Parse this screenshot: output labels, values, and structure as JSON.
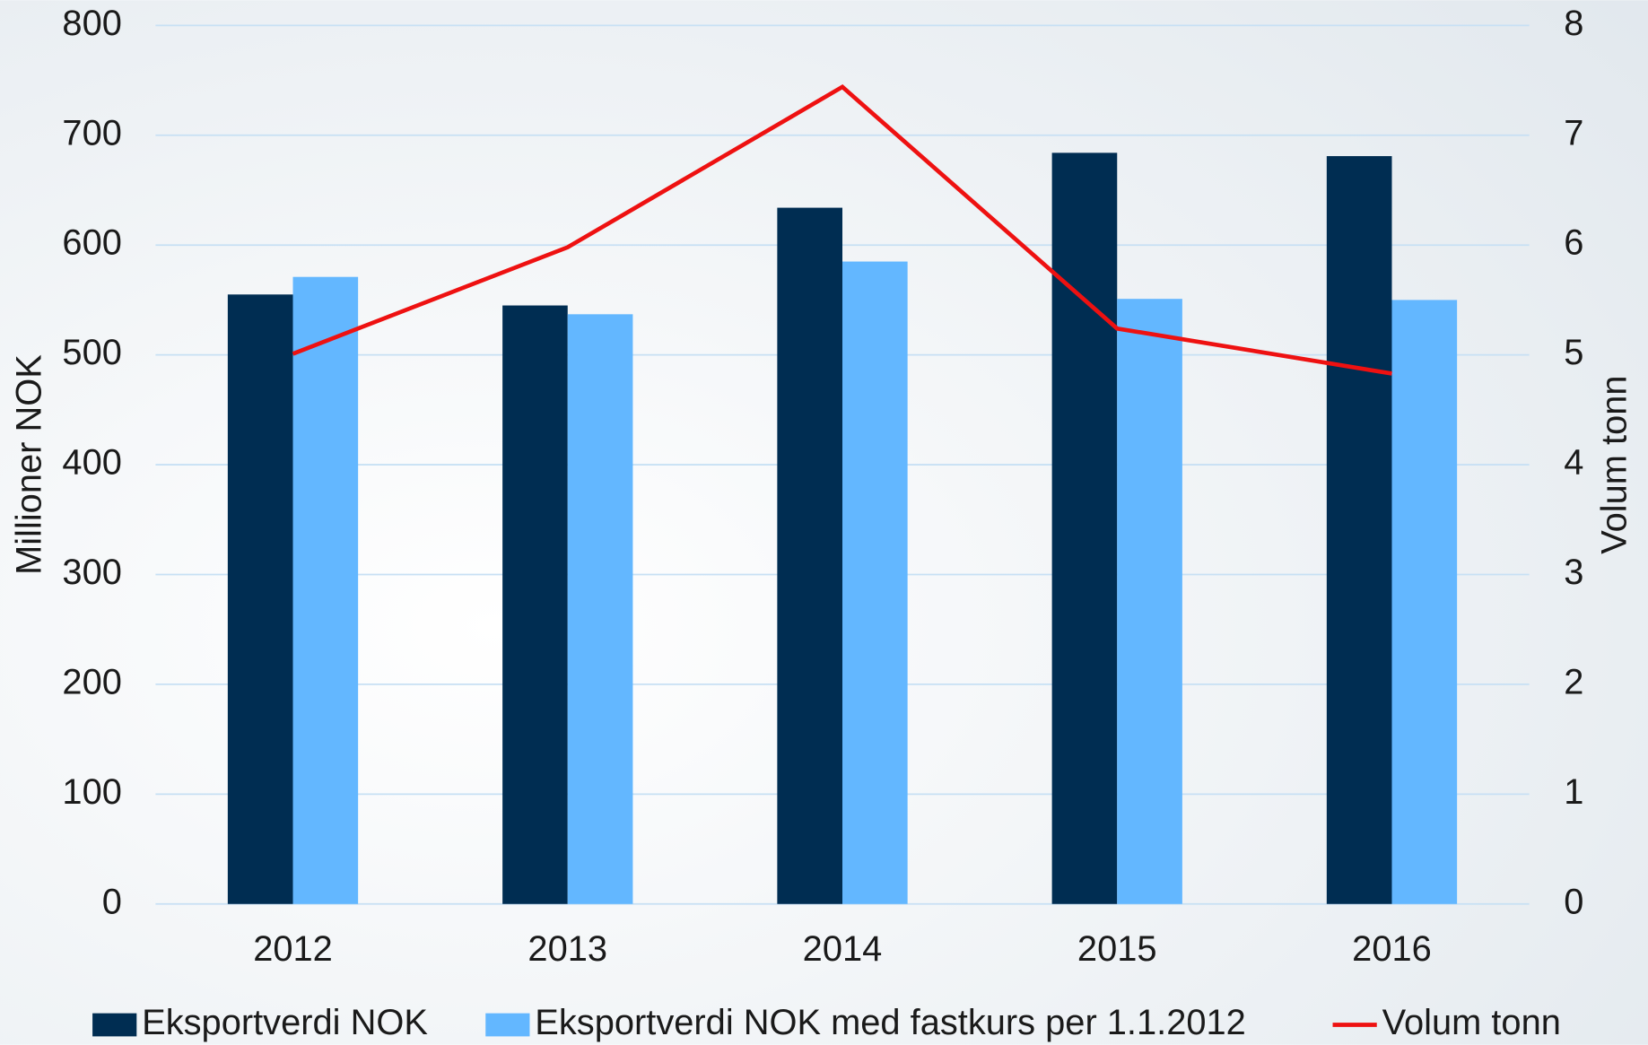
{
  "chart_data": {
    "type": "bar",
    "categories": [
      "2012",
      "2013",
      "2014",
      "2015",
      "2016"
    ],
    "series": [
      {
        "name": "Eksportverdi NOK",
        "color": "#002d52",
        "values": [
          555,
          545,
          634,
          684,
          681
        ]
      },
      {
        "name": "Eksportverdi NOK med fastkurs per 1.1.2012",
        "color": "#63b7ff",
        "values": [
          571,
          537,
          585,
          551,
          550
        ]
      },
      {
        "name": "Volum tonn",
        "type": "line",
        "axis": "y2",
        "color": "#ee1111",
        "values": [
          5.01,
          5.98,
          7.44,
          5.24,
          4.83
        ]
      }
    ],
    "ylabel": "Millioner NOK",
    "y2label": "Volum tonn",
    "ylim": [
      0,
      800
    ],
    "yticks": [
      0,
      100,
      200,
      300,
      400,
      500,
      600,
      700,
      800
    ],
    "y2lim": [
      0,
      8
    ],
    "y2ticks": [
      0,
      1,
      2,
      3,
      4,
      5,
      6,
      7,
      8
    ],
    "grid": true,
    "legend": "bottom"
  }
}
